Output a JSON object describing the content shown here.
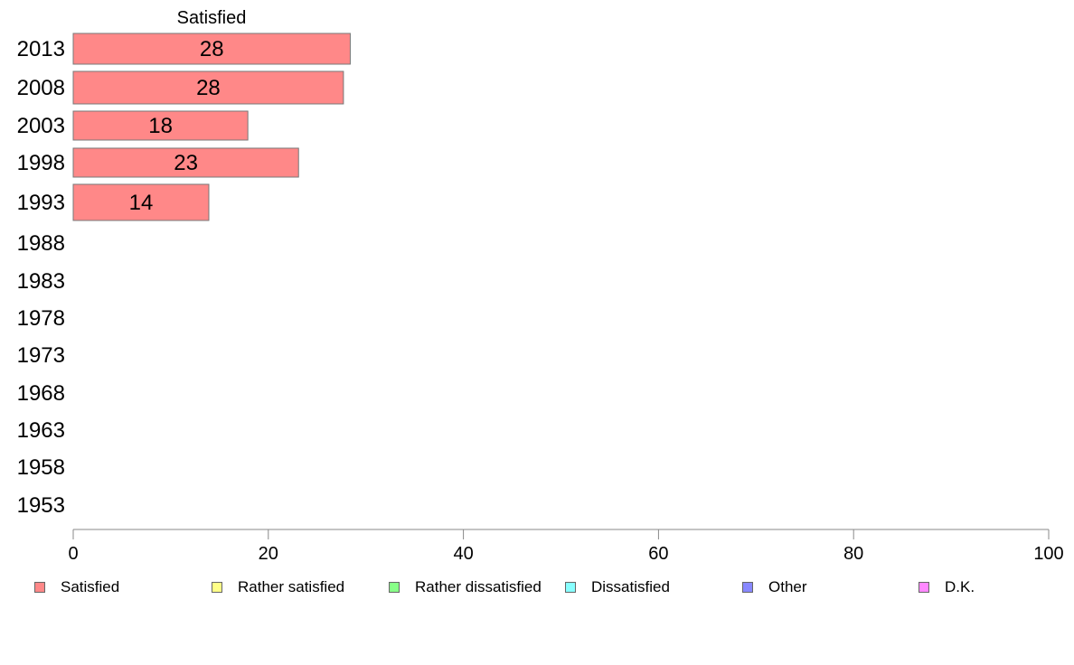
{
  "chart_data": {
    "type": "bar",
    "orientation": "horizontal",
    "stacked": true,
    "series_label": "Satisfied",
    "categories": [
      "2013",
      "2008",
      "2003",
      "1998",
      "1993",
      "1988",
      "1983",
      "1978",
      "1973",
      "1968",
      "1963",
      "1958",
      "1953"
    ],
    "series": [
      {
        "name": "Satisfied",
        "color": "#ff8888",
        "values": [
          28.4,
          27.7,
          17.9,
          23.1,
          13.9,
          null,
          null,
          null,
          null,
          null,
          null,
          null,
          null
        ],
        "labels": [
          "28",
          "28",
          "18",
          "23",
          "14",
          "",
          "",
          "",
          "",
          "",
          "",
          "",
          ""
        ]
      }
    ],
    "xlim": [
      0,
      100
    ],
    "xticks": [
      "0",
      "20",
      "40",
      "60",
      "80",
      "100"
    ],
    "grid": false,
    "legend_position": "bottom",
    "legend": [
      {
        "label": "Satisfied",
        "color": "#ff8888"
      },
      {
        "label": "Rather satisfied",
        "color": "#ffff88"
      },
      {
        "label": "Rather dissatisfied",
        "color": "#88ff88"
      },
      {
        "label": "Dissatisfied",
        "color": "#88ffff"
      },
      {
        "label": "Other",
        "color": "#8888ff"
      },
      {
        "label": "D.K.",
        "color": "#ff88ff"
      }
    ]
  }
}
